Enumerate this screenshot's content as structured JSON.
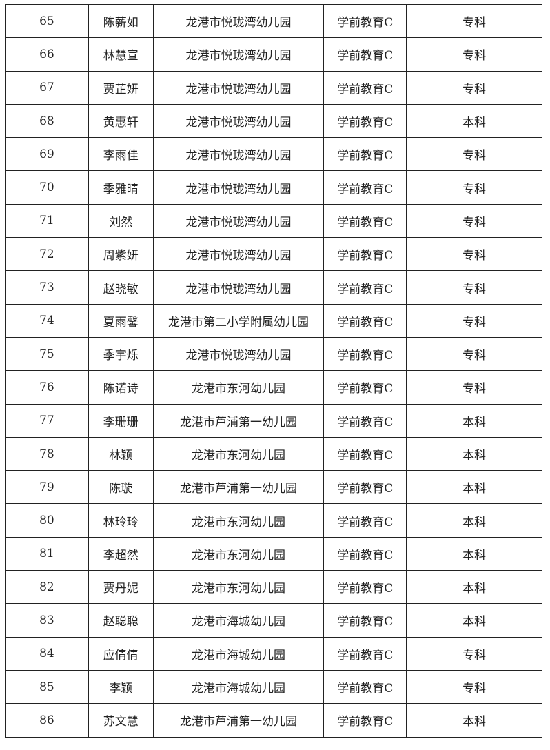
{
  "rows": [
    {
      "no": "65",
      "name": "陈薪如",
      "school": "龙港市悦珑湾幼儿园",
      "subject": "学前教育C",
      "degree": "专科"
    },
    {
      "no": "66",
      "name": "林慧宣",
      "school": "龙港市悦珑湾幼儿园",
      "subject": "学前教育C",
      "degree": "专科"
    },
    {
      "no": "67",
      "name": "贾芷妍",
      "school": "龙港市悦珑湾幼儿园",
      "subject": "学前教育C",
      "degree": "专科"
    },
    {
      "no": "68",
      "name": "黄惠轩",
      "school": "龙港市悦珑湾幼儿园",
      "subject": "学前教育C",
      "degree": "本科"
    },
    {
      "no": "69",
      "name": "李雨佳",
      "school": "龙港市悦珑湾幼儿园",
      "subject": "学前教育C",
      "degree": "专科"
    },
    {
      "no": "70",
      "name": "季雅晴",
      "school": "龙港市悦珑湾幼儿园",
      "subject": "学前教育C",
      "degree": "专科"
    },
    {
      "no": "71",
      "name": "刘然",
      "school": "龙港市悦珑湾幼儿园",
      "subject": "学前教育C",
      "degree": "专科"
    },
    {
      "no": "72",
      "name": "周紫妍",
      "school": "龙港市悦珑湾幼儿园",
      "subject": "学前教育C",
      "degree": "专科"
    },
    {
      "no": "73",
      "name": "赵晓敏",
      "school": "龙港市悦珑湾幼儿园",
      "subject": "学前教育C",
      "degree": "专科"
    },
    {
      "no": "74",
      "name": "夏雨馨",
      "school": "龙港市第二小学附属幼儿园",
      "subject": "学前教育C",
      "degree": "专科"
    },
    {
      "no": "75",
      "name": "季宇烁",
      "school": "龙港市悦珑湾幼儿园",
      "subject": "学前教育C",
      "degree": "专科"
    },
    {
      "no": "76",
      "name": "陈诺诗",
      "school": "龙港市东河幼儿园",
      "subject": "学前教育C",
      "degree": "专科"
    },
    {
      "no": "77",
      "name": "李珊珊",
      "school": "龙港市芦浦第一幼儿园",
      "subject": "学前教育C",
      "degree": "本科"
    },
    {
      "no": "78",
      "name": "林颖",
      "school": "龙港市东河幼儿园",
      "subject": "学前教育C",
      "degree": "本科"
    },
    {
      "no": "79",
      "name": "陈璇",
      "school": "龙港市芦浦第一幼儿园",
      "subject": "学前教育C",
      "degree": "本科"
    },
    {
      "no": "80",
      "name": "林玲玲",
      "school": "龙港市东河幼儿园",
      "subject": "学前教育C",
      "degree": "本科"
    },
    {
      "no": "81",
      "name": "李超然",
      "school": "龙港市东河幼儿园",
      "subject": "学前教育C",
      "degree": "本科"
    },
    {
      "no": "82",
      "name": "贾丹妮",
      "school": "龙港市东河幼儿园",
      "subject": "学前教育C",
      "degree": "本科"
    },
    {
      "no": "83",
      "name": "赵聪聪",
      "school": "龙港市海城幼儿园",
      "subject": "学前教育C",
      "degree": "本科"
    },
    {
      "no": "84",
      "name": "应倩倩",
      "school": "龙港市海城幼儿园",
      "subject": "学前教育C",
      "degree": "专科"
    },
    {
      "no": "85",
      "name": "李颖",
      "school": "龙港市海城幼儿园",
      "subject": "学前教育C",
      "degree": "专科"
    },
    {
      "no": "86",
      "name": "苏文慧",
      "school": "龙港市芦浦第一幼儿园",
      "subject": "学前教育C",
      "degree": "本科"
    }
  ]
}
